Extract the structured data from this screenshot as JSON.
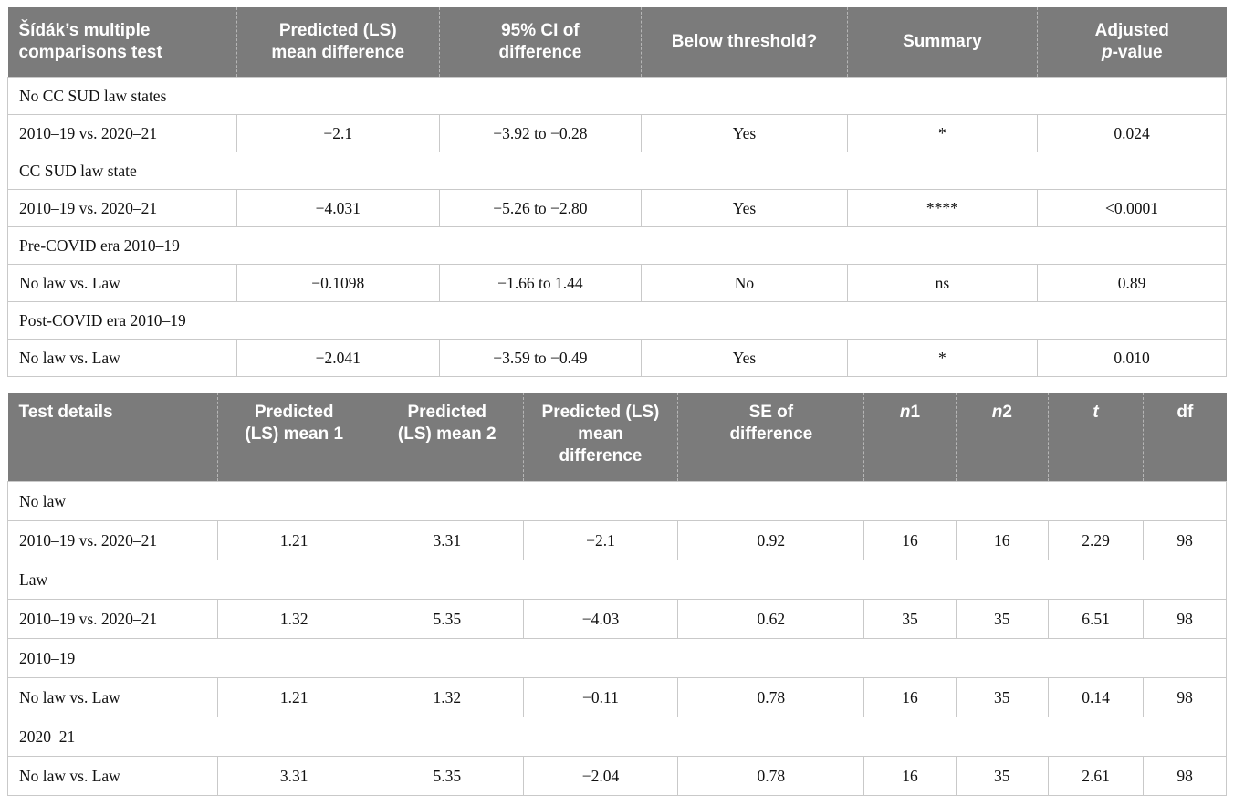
{
  "colors": {
    "header_background": "#7b7b7b",
    "header_text": "#ffffff",
    "cell_border": "#c9c9c9",
    "body_text": "#111111",
    "page_background": "#ffffff"
  },
  "table1": {
    "title": "Šídák’s multiple comparisons test",
    "headers": [
      {
        "name": "sidak-test",
        "segments": [
          {
            "t": "Šídák’s multiple\ncomparisons test"
          }
        ]
      },
      {
        "name": "predicted-ls-mean-difference",
        "segments": [
          {
            "t": "Predicted (LS)\nmean difference"
          }
        ]
      },
      {
        "name": "ci-of-difference",
        "segments": [
          {
            "t": "95% CI of\ndifference"
          }
        ]
      },
      {
        "name": "below-threshold",
        "segments": [
          {
            "t": "Below threshold?"
          }
        ]
      },
      {
        "name": "summary",
        "segments": [
          {
            "t": "Summary"
          }
        ]
      },
      {
        "name": "adjusted-p-value",
        "segments": [
          {
            "t": "Adjusted\n"
          },
          {
            "t": "p",
            "i": true
          },
          {
            "t": "-value"
          }
        ]
      }
    ],
    "rows": [
      {
        "type": "group",
        "label": "No CC SUD law states"
      },
      {
        "type": "data",
        "cells": [
          "2010–19 vs. 2020–21",
          "−2.1",
          "−3.92 to −0.28",
          "Yes",
          "*",
          "0.024"
        ]
      },
      {
        "type": "group",
        "label": "CC SUD law state"
      },
      {
        "type": "data",
        "cells": [
          "2010–19 vs. 2020–21",
          "−4.031",
          "−5.26 to −2.80",
          "Yes",
          "****",
          "<0.0001"
        ]
      },
      {
        "type": "group",
        "label": "Pre-COVID era 2010–19"
      },
      {
        "type": "data",
        "cells": [
          "No law vs. Law",
          "−0.1098",
          "−1.66 to 1.44",
          "No",
          "ns",
          "0.89"
        ]
      },
      {
        "type": "group",
        "label": "Post-COVID era 2010–19"
      },
      {
        "type": "data",
        "cells": [
          "No law vs. Law",
          "−2.041",
          "−3.59 to −0.49",
          "Yes",
          "*",
          "0.010"
        ]
      }
    ]
  },
  "table2": {
    "title": "Test details",
    "headers": [
      {
        "name": "test-details",
        "segments": [
          {
            "t": "Test details"
          }
        ]
      },
      {
        "name": "predicted-ls-mean-1",
        "segments": [
          {
            "t": "Predicted\n(LS) mean 1"
          }
        ]
      },
      {
        "name": "predicted-ls-mean-2",
        "segments": [
          {
            "t": "Predicted\n(LS) mean 2"
          }
        ]
      },
      {
        "name": "predicted-ls-mean-difference",
        "segments": [
          {
            "t": "Predicted (LS)\nmean\ndifference"
          }
        ]
      },
      {
        "name": "se-of-difference",
        "segments": [
          {
            "t": "SE of\ndifference"
          }
        ]
      },
      {
        "name": "n1",
        "segments": [
          {
            "t": "n",
            "i": true
          },
          {
            "t": "1"
          }
        ]
      },
      {
        "name": "n2",
        "segments": [
          {
            "t": "n",
            "i": true
          },
          {
            "t": "2"
          }
        ]
      },
      {
        "name": "t",
        "segments": [
          {
            "t": "t",
            "i": true
          }
        ]
      },
      {
        "name": "df",
        "segments": [
          {
            "t": "df"
          }
        ]
      }
    ],
    "rows": [
      {
        "type": "group",
        "label": "No law"
      },
      {
        "type": "data",
        "cells": [
          "2010–19 vs. 2020–21",
          "1.21",
          "3.31",
          "−2.1",
          "0.92",
          "16",
          "16",
          "2.29",
          "98"
        ]
      },
      {
        "type": "group",
        "label": "Law"
      },
      {
        "type": "data",
        "cells": [
          "2010–19 vs. 2020–21",
          "1.32",
          "5.35",
          "−4.03",
          "0.62",
          "35",
          "35",
          "6.51",
          "98"
        ]
      },
      {
        "type": "group",
        "label": "2010–19"
      },
      {
        "type": "data",
        "cells": [
          "No law vs. Law",
          "1.21",
          "1.32",
          "−0.11",
          "0.78",
          "16",
          "35",
          "0.14",
          "98"
        ]
      },
      {
        "type": "group",
        "label": "2020–21"
      },
      {
        "type": "data",
        "cells": [
          "No law vs. Law",
          "3.31",
          "5.35",
          "−2.04",
          "0.78",
          "16",
          "35",
          "2.61",
          "98"
        ]
      }
    ]
  }
}
